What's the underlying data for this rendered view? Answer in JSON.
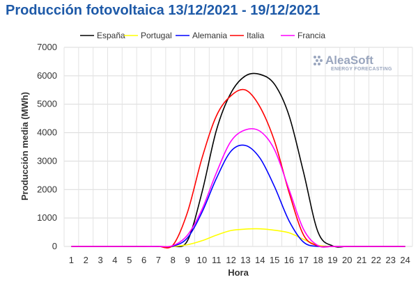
{
  "chart_data": {
    "type": "line",
    "title": "Producción fotovoltaica 13/12/2021 - 19/12/2021",
    "xlabel": "Hora",
    "ylabel": "Producción media (MWh)",
    "x": [
      1,
      2,
      3,
      4,
      5,
      6,
      7,
      8,
      9,
      10,
      11,
      12,
      13,
      14,
      15,
      16,
      17,
      18,
      19,
      20,
      21,
      22,
      23,
      24
    ],
    "ylim": [
      0,
      7000
    ],
    "yticks": [
      0,
      1000,
      2000,
      3000,
      4000,
      5000,
      6000,
      7000
    ],
    "grid": true,
    "legend_position": "top",
    "series": [
      {
        "name": "España",
        "color": "#000000",
        "values": [
          0,
          0,
          0,
          0,
          0,
          0,
          0,
          0,
          200,
          1900,
          4100,
          5400,
          6000,
          6050,
          5700,
          4600,
          2600,
          500,
          20,
          0,
          0,
          0,
          0,
          0
        ]
      },
      {
        "name": "Portugal",
        "color": "#ffff00",
        "values": [
          0,
          0,
          0,
          0,
          0,
          0,
          0,
          0,
          60,
          200,
          400,
          560,
          610,
          620,
          570,
          480,
          250,
          40,
          0,
          0,
          0,
          0,
          0,
          0
        ]
      },
      {
        "name": "Alemania",
        "color": "#0000ff",
        "values": [
          0,
          0,
          0,
          0,
          0,
          0,
          0,
          10,
          300,
          1200,
          2400,
          3350,
          3550,
          3100,
          2100,
          900,
          150,
          0,
          0,
          0,
          0,
          0,
          0,
          0
        ]
      },
      {
        "name": "Italia",
        "color": "#ff0000",
        "values": [
          0,
          0,
          0,
          0,
          0,
          0,
          0,
          50,
          1200,
          3100,
          4600,
          5300,
          5500,
          4900,
          3700,
          1900,
          400,
          20,
          0,
          0,
          0,
          0,
          0,
          0
        ]
      },
      {
        "name": "Francia",
        "color": "#ff00ff",
        "values": [
          0,
          0,
          0,
          0,
          0,
          0,
          0,
          30,
          400,
          1300,
          2600,
          3700,
          4100,
          4050,
          3400,
          2000,
          600,
          30,
          0,
          0,
          0,
          0,
          0,
          0
        ]
      }
    ]
  },
  "logo": {
    "text": "AleaSoft",
    "subtitle": "ENERGY FORECASTING"
  }
}
